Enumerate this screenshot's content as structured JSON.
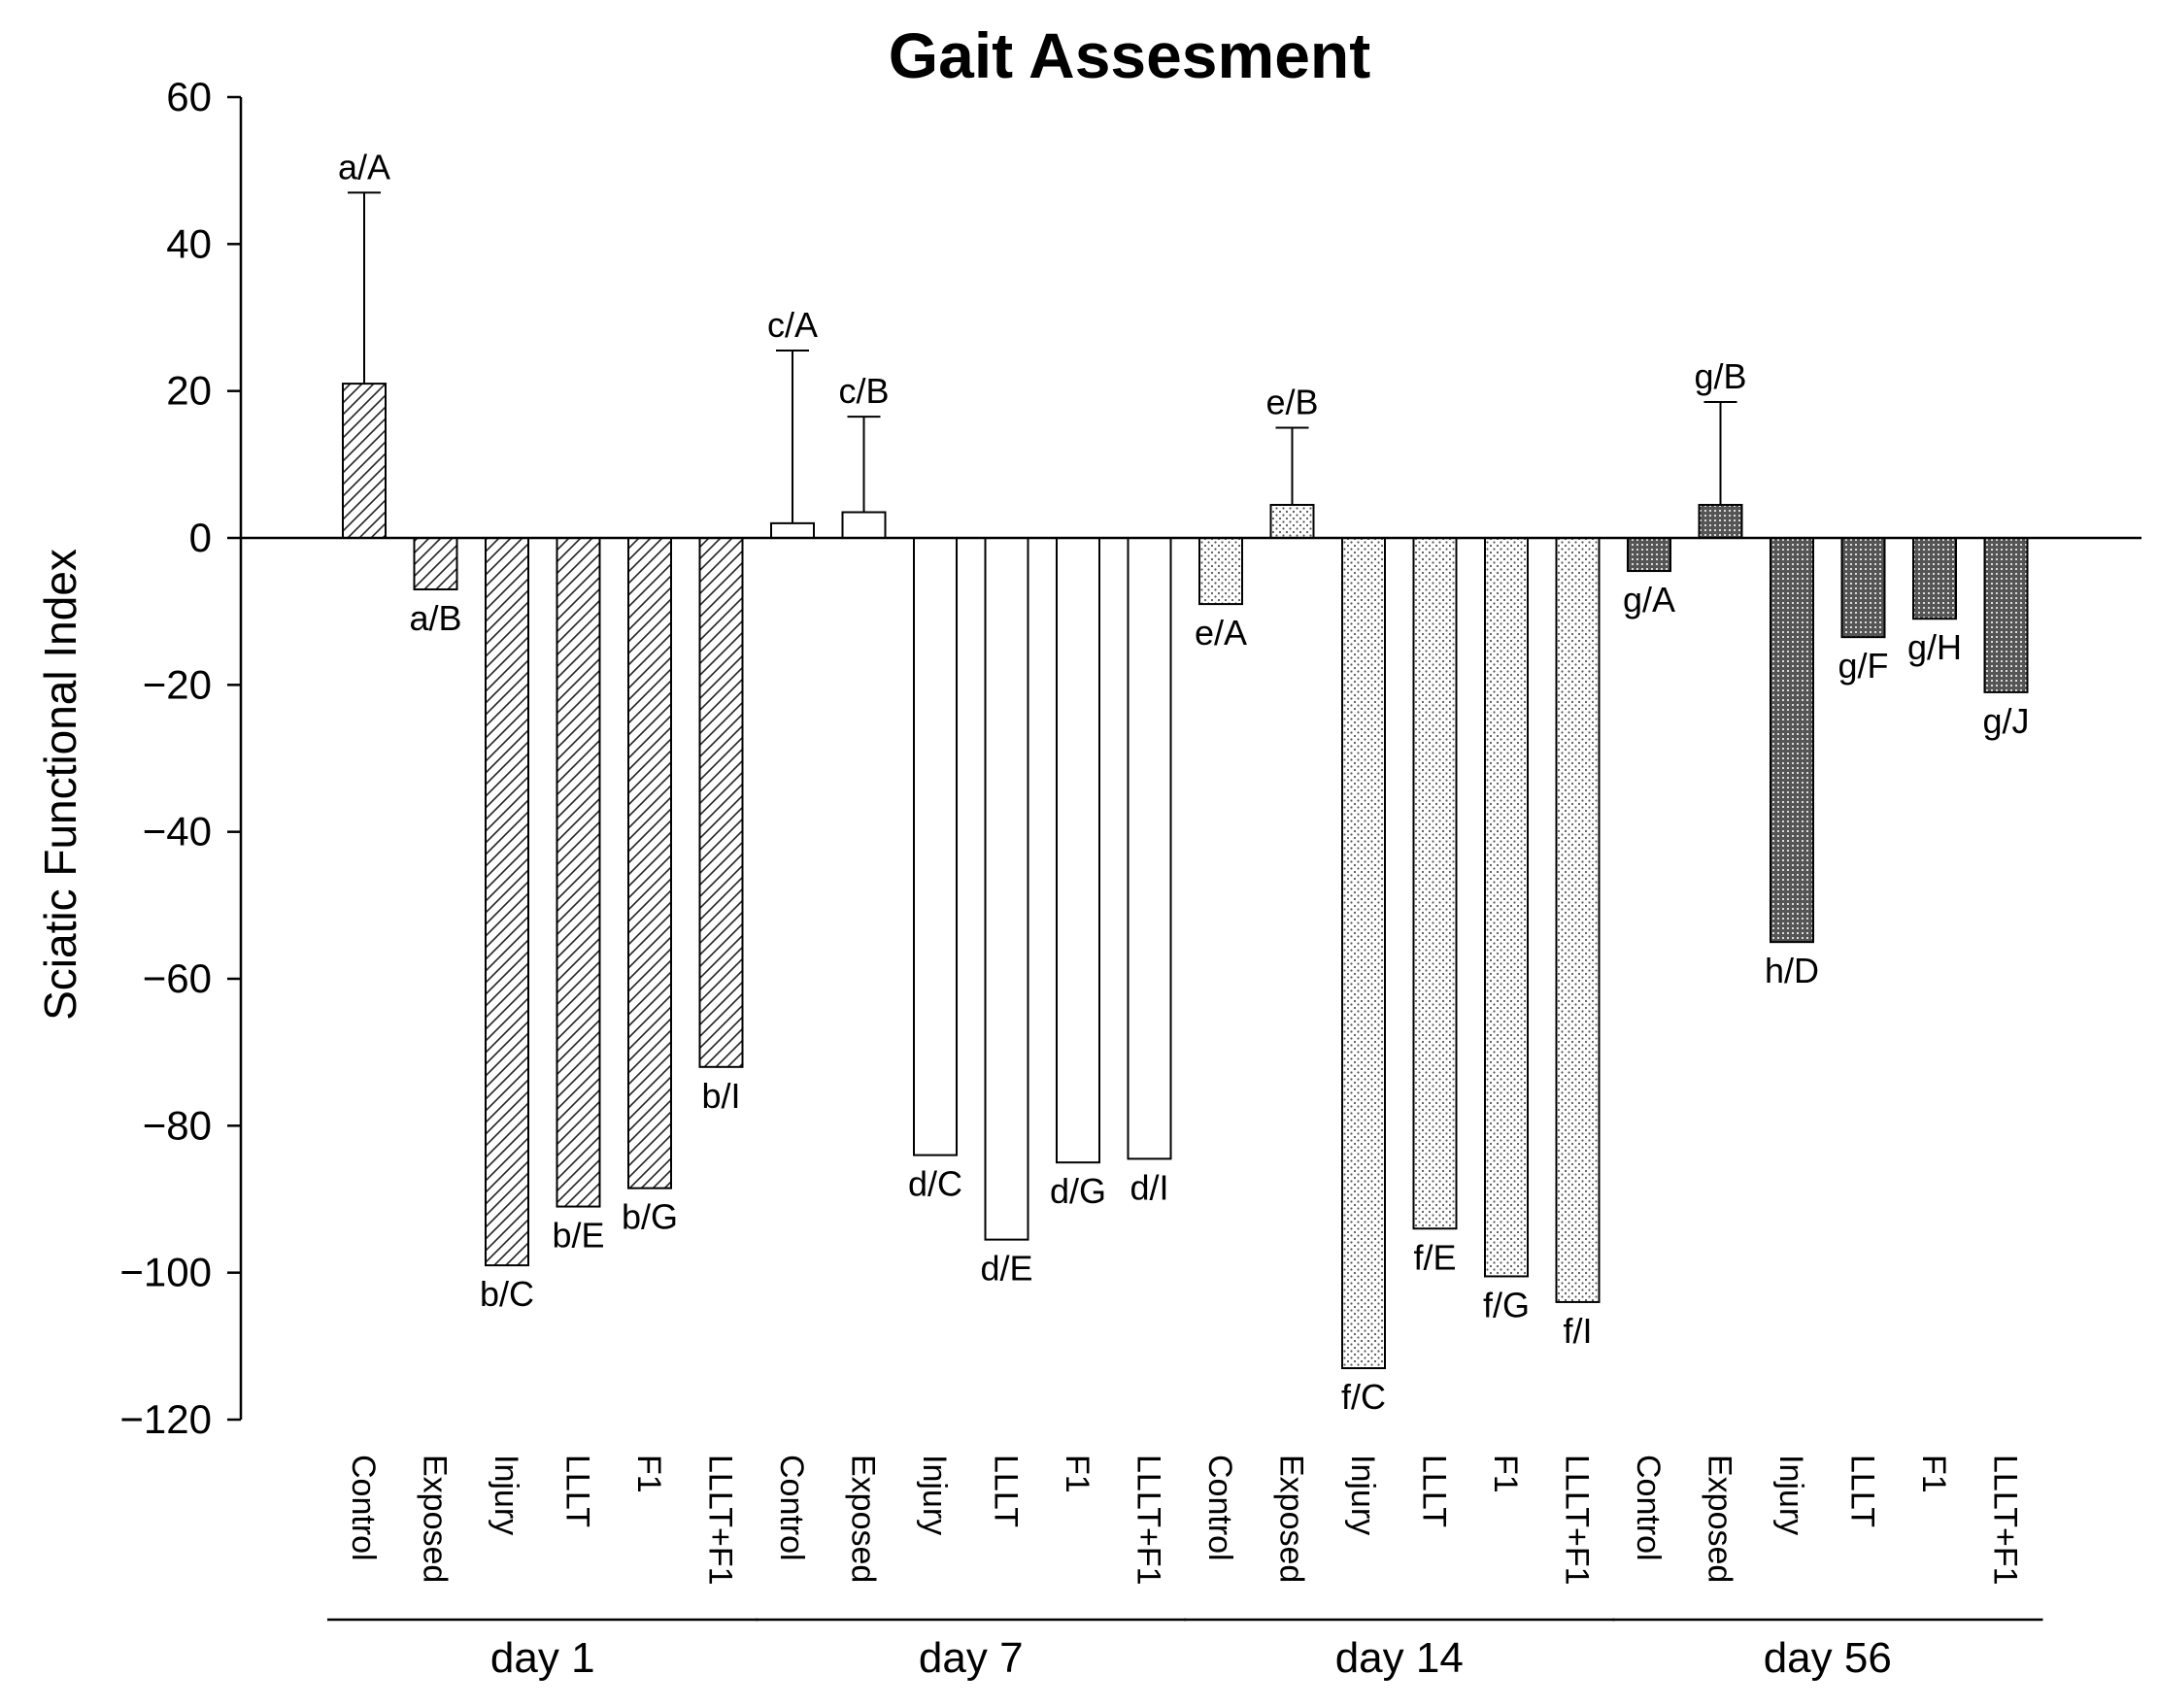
{
  "chart_data": {
    "type": "bar",
    "title": "Gait Assesment",
    "ylabel": "Sciatic Functional Index",
    "xlabel": "",
    "ylim": [
      -120,
      60
    ],
    "yticks": [
      60,
      40,
      20,
      0,
      -20,
      -40,
      -60,
      -80,
      -100,
      -120
    ],
    "yticklabels": [
      "60",
      "40",
      "20",
      "0",
      "−20",
      "−40",
      "−60",
      "−80",
      "−100",
      "−120"
    ],
    "grid": false,
    "categories": [
      "Control",
      "Exposed",
      "Injury",
      "LLLT",
      "F1",
      "LLLT+F1"
    ],
    "groups": [
      {
        "name": "day 1",
        "pattern": "hatch",
        "values": [
          21,
          -7,
          -99,
          -91,
          -88.5,
          -72
        ],
        "errors": [
          26,
          null,
          null,
          null,
          null,
          null
        ],
        "annotations": [
          "a/A",
          "a/B",
          "b/C",
          "b/E",
          "b/G",
          "b/I"
        ]
      },
      {
        "name": "day 7",
        "pattern": "white",
        "values": [
          2,
          3.5,
          -84,
          -95.5,
          -85,
          -84.5
        ],
        "errors": [
          23.5,
          13,
          null,
          null,
          null,
          null
        ],
        "annotations": [
          "c/A",
          "c/B",
          "d/C",
          "d/E",
          "d/G",
          "d/I"
        ]
      },
      {
        "name": "day 14",
        "pattern": "dots",
        "values": [
          -9,
          4.5,
          -113,
          -94,
          -100.5,
          -104
        ],
        "errors": [
          null,
          10.5,
          null,
          null,
          null,
          null
        ],
        "annotations": [
          "e/A",
          "e/B",
          "f/C",
          "f/E",
          "f/G",
          "f/I"
        ]
      },
      {
        "name": "day 56",
        "pattern": "dense",
        "values": [
          -4.5,
          4.5,
          -55,
          -13.5,
          -11,
          -21
        ],
        "errors": [
          null,
          14,
          null,
          null,
          null,
          null
        ],
        "annotations": [
          "g/A",
          "g/B",
          "h/D",
          "g/F",
          "g/H",
          "g/J"
        ]
      }
    ]
  }
}
